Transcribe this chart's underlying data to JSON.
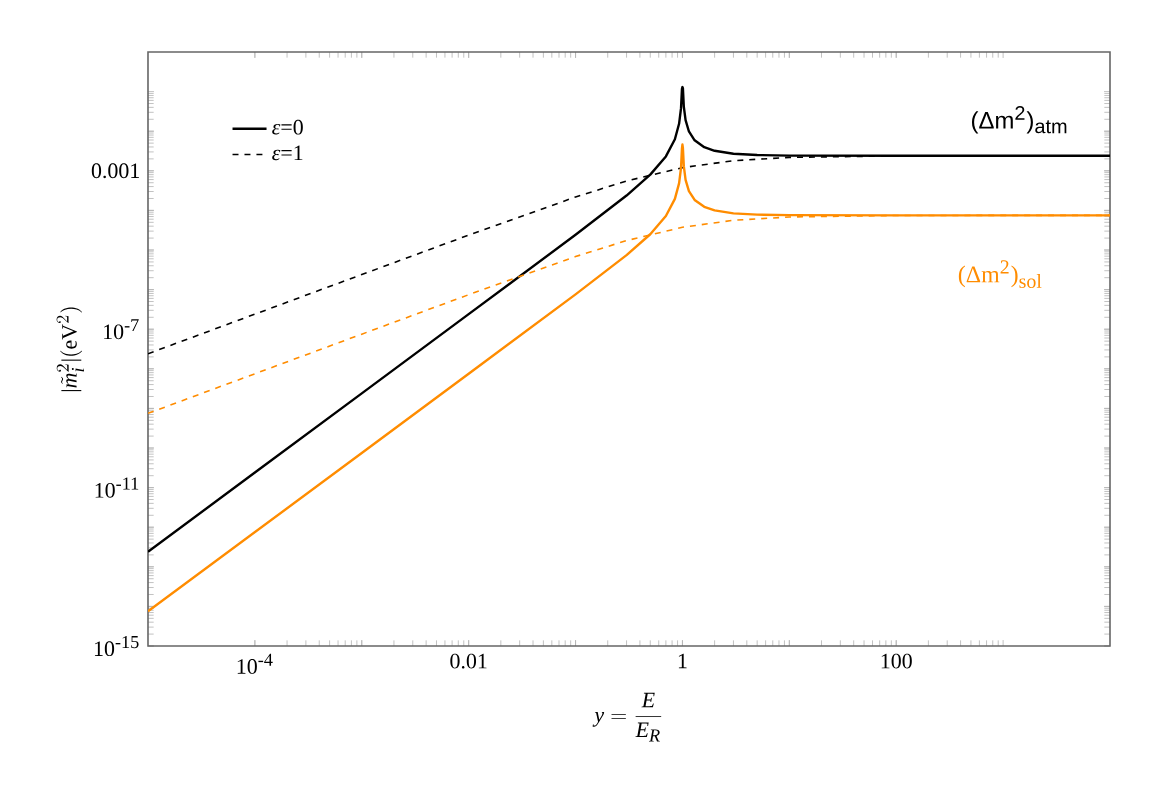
{
  "chart_data": {
    "type": "line",
    "xlabel": "y=\\frac{E}{E_R}",
    "ylabel": "|\\tilde{m}_i^2|(\\mathrm{eV}^2)",
    "log": "xy",
    "xlim": [
      1e-05,
      10000
    ],
    "ylim": [
      1e-15,
      1
    ],
    "xticks": [
      {
        "value": 0.0001,
        "label": "10$^{-4}$"
      },
      {
        "value": 0.001,
        "label": null
      },
      0.01,
      {
        "value": 0.1,
        "label": null
      },
      1,
      {
        "value": 10,
        "label": null
      },
      100,
      {
        "value": 1000,
        "label": null
      }
    ],
    "yticks": [
      {
        "value": 1e-15,
        "label": "10$^{-15}$"
      },
      {
        "value": 1e-14,
        "label": null
      },
      {
        "value": 1e-13,
        "label": null
      },
      {
        "value": 1e-12,
        "label": null
      },
      {
        "value": 1e-11,
        "label": "10$^{-11}$"
      },
      {
        "value": 1e-10,
        "label": null
      },
      {
        "value": 1e-09,
        "label": null
      },
      {
        "value": 1e-08,
        "label": null
      },
      {
        "value": 1e-07,
        "label": "10$^{-7}$"
      },
      {
        "value": 1e-06,
        "label": null
      },
      {
        "value": 1e-05,
        "label": null
      },
      {
        "value": 0.0001,
        "label": null
      },
      0.001,
      {
        "value": 0.01,
        "label": null
      },
      {
        "value": 0.1,
        "label": null
      }
    ],
    "legend": "top left",
    "grid": false,
    "series": [
      {
        "name": "*ε*=0",
        "color": "#000000",
        "line_style": "solid",
        "x": [
          1e-05,
          0.0001,
          0.001,
          0.01,
          0.1,
          0.3,
          0.5,
          0.7,
          0.85,
          0.93,
          0.97,
          0.99,
          1,
          1.01,
          1.03,
          1.07,
          1.15,
          1.3,
          1.6,
          2,
          3,
          5,
          10,
          100,
          10000
        ],
        "values": [
          2.4e-13,
          2.4e-11,
          2.4e-09,
          2.4e-07,
          2.42e-05,
          0.000237,
          0.0008,
          0.00231,
          0.00625,
          0.0154,
          0.0382,
          0.118,
          0.13,
          0.122,
          0.0418,
          0.019,
          0.00984,
          0.00588,
          0.00394,
          0.0032,
          0.0027,
          0.0025,
          0.00242,
          0.0024,
          0.0024
        ]
      },
      {
        "name": "*ε*=1",
        "color": "#000000",
        "line_style": "dashed",
        "x": [
          1e-05,
          0.0001,
          0.001,
          0.01,
          0.1,
          0.3,
          1,
          3,
          10,
          100,
          1000,
          10000
        ],
        "values": [
          2.4e-08,
          2.4e-07,
          2.4e-06,
          2.38e-05,
          0.000218,
          0.000554,
          0.0012,
          0.0018,
          0.00218,
          0.00238,
          0.0024,
          0.0024
        ]
      },
      {
        "color": "#ff8c00",
        "line_style": "solid",
        "x": [
          1e-05,
          0.0001,
          0.001,
          0.01,
          0.1,
          0.3,
          0.5,
          0.7,
          0.85,
          0.93,
          0.97,
          0.99,
          1,
          1.01,
          1.03,
          1.07,
          1.15,
          1.3,
          1.6,
          2,
          3,
          5,
          10,
          100,
          10000
        ],
        "values": [
          7.5e-15,
          7.5e-13,
          7.5e-11,
          7.5e-09,
          7.58e-07,
          7.42e-06,
          2.5e-05,
          7.21e-05,
          0.000195,
          0.00048,
          0.00119,
          0.00369,
          0.0046,
          0.00381,
          0.00131,
          0.000593,
          0.000308,
          0.000184,
          0.000123,
          0.0001,
          8.44e-05,
          7.81e-05,
          7.58e-05,
          7.5e-05,
          7.5e-05
        ]
      },
      {
        "color": "#ff8c00",
        "line_style": "dashed",
        "x": [
          1e-05,
          0.0001,
          0.001,
          0.01,
          0.1,
          0.3,
          1,
          3,
          10,
          100,
          1000,
          10000
        ],
        "values": [
          7.5e-10,
          7.5e-09,
          7.5e-08,
          7.43e-07,
          6.82e-06,
          1.73e-05,
          3.75e-05,
          5.63e-05,
          6.82e-05,
          7.43e-05,
          7.49e-05,
          7.5e-05
        ]
      }
    ],
    "annotations": [
      "(Δm$^{2}$)$_{atm}$",
      "(Δm$^{2}$)$_{sol}$"
    ]
  }
}
